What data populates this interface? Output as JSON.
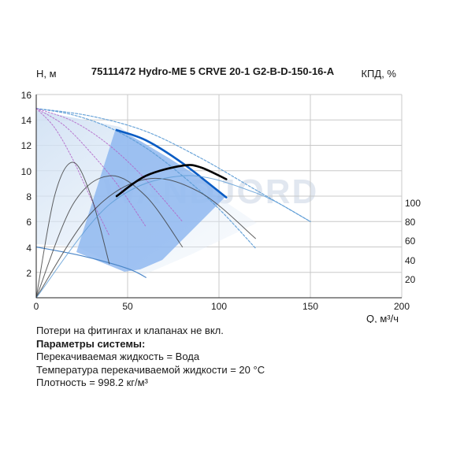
{
  "chart_data": {
    "type": "line",
    "title": "75111472 Hydro-ME 5 CRVE 20-1 G2-B-D-150-16-A",
    "ylabel": "H, м",
    "y2label": "КПД, %",
    "xlabel": "Q, м³/ч",
    "xlim": [
      0,
      200
    ],
    "ylim": [
      0,
      16
    ],
    "y2lim": [
      0,
      120
    ],
    "x_ticks": [
      "0",
      "50",
      "100",
      "150",
      "200"
    ],
    "y_ticks": [
      "2",
      "4",
      "6",
      "8",
      "10",
      "12",
      "14",
      "16"
    ],
    "y2_ticks": [
      "20",
      "40",
      "60",
      "80",
      "100"
    ],
    "watermark": "WANDJORD",
    "grid": true,
    "series": [
      {
        "role": "max-curve-1-pump",
        "color": "#5b9bd5",
        "x": [
          0,
          20,
          40,
          60,
          80,
          100,
          120
        ],
        "y": [
          14.9,
          14.4,
          13.4,
          11.8,
          9.6,
          7.0,
          3.9
        ]
      },
      {
        "role": "max-curve-multi-pump",
        "color": "#5b9bd5",
        "x": [
          0,
          30,
          60,
          90,
          120,
          150
        ],
        "y": [
          14.9,
          14.3,
          13.1,
          11.0,
          8.5,
          6.0
        ]
      },
      {
        "role": "reduced-1",
        "color": "#b264c8",
        "x": [
          0,
          20,
          40,
          60,
          80
        ],
        "y": [
          14.9,
          13.9,
          12.0,
          9.3,
          6.0
        ]
      },
      {
        "role": "reduced-2",
        "color": "#b264c8",
        "x": [
          0,
          15,
          30,
          45,
          60
        ],
        "y": [
          14.9,
          13.6,
          11.4,
          8.8,
          5.6
        ]
      },
      {
        "role": "reduced-3",
        "color": "#b264c8",
        "x": [
          0,
          10,
          20,
          30,
          40
        ],
        "y": [
          14.9,
          13.4,
          10.9,
          7.8,
          4.9
        ]
      },
      {
        "role": "min-curve",
        "color": "#4a86c8",
        "x": [
          0,
          25,
          50,
          60
        ],
        "y": [
          4.0,
          3.3,
          2.3,
          1.6
        ]
      },
      {
        "role": "operating-range",
        "color": "#0a5cc4",
        "x": [
          44,
          60,
          80,
          104
        ],
        "y": [
          13.2,
          12.4,
          10.6,
          7.9
        ]
      },
      {
        "role": "efficiency-1",
        "color": "#3a3a3a",
        "x": [
          0,
          10,
          20,
          30,
          40
        ],
        "y2": [
          0,
          60,
          80,
          60,
          20
        ]
      },
      {
        "role": "efficiency-2",
        "color": "#3a3a3a",
        "x": [
          0,
          20,
          40,
          60,
          80
        ],
        "y2": [
          0,
          55,
          72,
          60,
          30
        ]
      },
      {
        "role": "efficiency-3",
        "color": "#3a3a3a",
        "x": [
          0,
          30,
          60,
          90,
          120
        ],
        "y2": [
          0,
          50,
          70,
          62,
          35
        ]
      },
      {
        "role": "efficiency-4",
        "color": "#5b9bd5",
        "x": [
          0,
          40,
          80,
          120,
          150
        ],
        "y2": [
          0,
          55,
          72,
          62,
          45
        ]
      },
      {
        "role": "efficiency-duty",
        "color": "#000000",
        "x": [
          44,
          60,
          80,
          90,
          104
        ],
        "y2": [
          60,
          72,
          78,
          77,
          70
        ]
      }
    ]
  },
  "notes": {
    "line1": "Потери на фитингах и клапанах не вкл.",
    "line2": "Параметры системы:",
    "line3": "Перекачиваемая жидкость = Вода",
    "line4": "Температура перекачиваемой жидкости = 20 °C",
    "line5": "Плотность = 998.2 кг/м³"
  }
}
